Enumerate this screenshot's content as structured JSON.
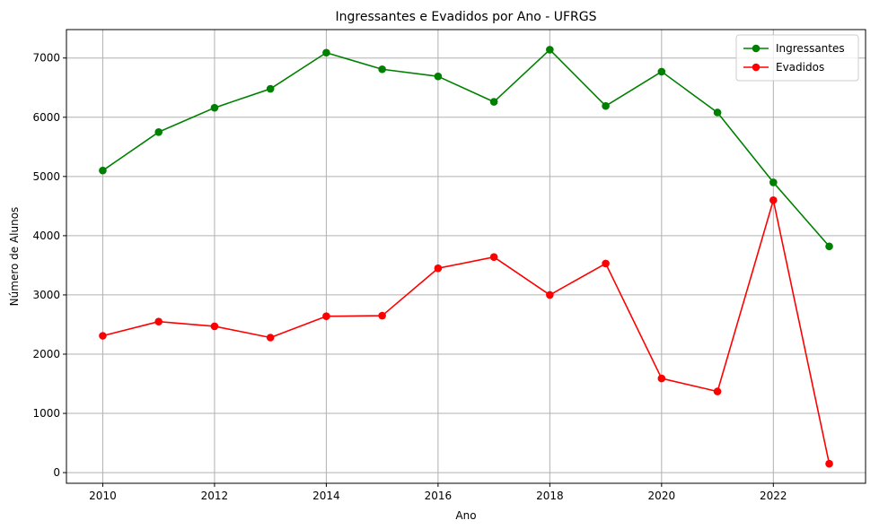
{
  "chart_data": {
    "type": "line",
    "title": "Ingressantes e Evadidos por Ano - UFRGS",
    "xlabel": "Ano",
    "ylabel": "Número de Alunos",
    "x": [
      2010,
      2011,
      2012,
      2013,
      2014,
      2015,
      2016,
      2017,
      2018,
      2019,
      2020,
      2021,
      2022,
      2023
    ],
    "xlim": [
      2009.35,
      2023.65
    ],
    "ylim": [
      -180,
      7480
    ],
    "xticks": [
      2010,
      2012,
      2014,
      2016,
      2018,
      2020,
      2022
    ],
    "yticks": [
      0,
      1000,
      2000,
      3000,
      4000,
      5000,
      6000,
      7000
    ],
    "grid": true,
    "legend_position": "top-right",
    "series": [
      {
        "name": "Ingressantes",
        "color": "#008000",
        "marker": "circle",
        "values": [
          5100,
          5750,
          6160,
          6480,
          7090,
          6810,
          6690,
          6260,
          7140,
          6190,
          6770,
          6080,
          4900,
          3820
        ]
      },
      {
        "name": "Evadidos",
        "color": "#ff0000",
        "marker": "circle",
        "values": [
          2310,
          2550,
          2470,
          2280,
          2640,
          2650,
          3450,
          3640,
          3000,
          3530,
          1590,
          1370,
          4600,
          150
        ]
      }
    ]
  }
}
